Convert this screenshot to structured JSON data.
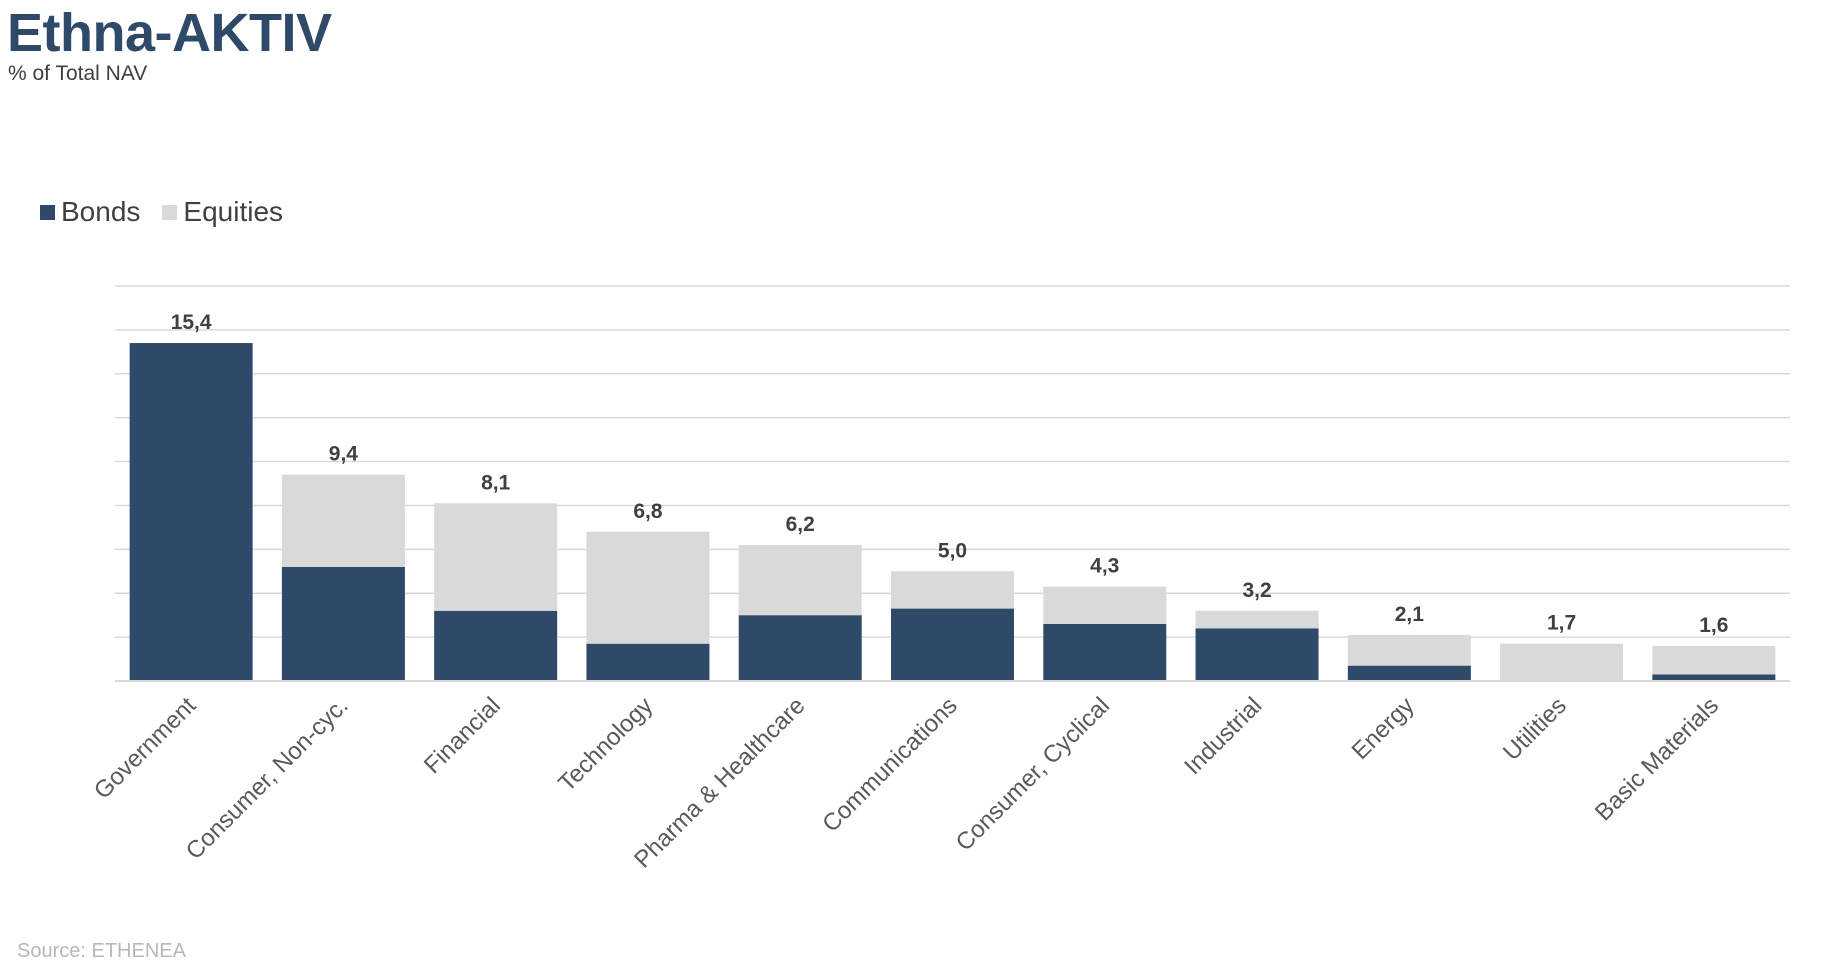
{
  "header": {
    "title": "Ethna-AKTIV",
    "subtitle": "% of Total NAV"
  },
  "legend": {
    "items": [
      {
        "label": "Bonds",
        "color": "#2e4a68"
      },
      {
        "label": "Equities",
        "color": "#d9d9d9"
      }
    ]
  },
  "footer": {
    "source": "Source: ETHENEA"
  },
  "chart_data": {
    "type": "bar",
    "stacked": true,
    "title": "Ethna-AKTIV",
    "subtitle": "% of Total NAV",
    "categories": [
      "Government",
      "Consumer, Non-cyc.",
      "Financial",
      "Technology",
      "Pharma & Healthcare",
      "Communications",
      "Consumer, Cyclical",
      "Industrial",
      "Energy",
      "Utilities",
      "Basic Materials"
    ],
    "series": [
      {
        "name": "Bonds",
        "color": "#2e4a68",
        "values": [
          15.4,
          5.2,
          3.2,
          1.7,
          3.0,
          3.3,
          2.6,
          2.4,
          0.7,
          0.0,
          0.3
        ]
      },
      {
        "name": "Equities",
        "color": "#d9d9d9",
        "values": [
          0.0,
          4.2,
          4.9,
          5.1,
          3.2,
          1.7,
          1.7,
          0.8,
          1.4,
          1.7,
          1.3
        ]
      }
    ],
    "totals": [
      15.4,
      9.4,
      8.1,
      6.8,
      6.2,
      5.0,
      4.3,
      3.2,
      2.1,
      1.7,
      1.6
    ],
    "total_labels": [
      "15,4",
      "9,4",
      "8,1",
      "6,8",
      "6,2",
      "5,0",
      "4,3",
      "3,2",
      "2,1",
      "1,7",
      "1,6"
    ],
    "ylim": [
      0,
      18
    ],
    "grid": true,
    "legend_position": "top-left",
    "source": "Source: ETHENEA"
  }
}
